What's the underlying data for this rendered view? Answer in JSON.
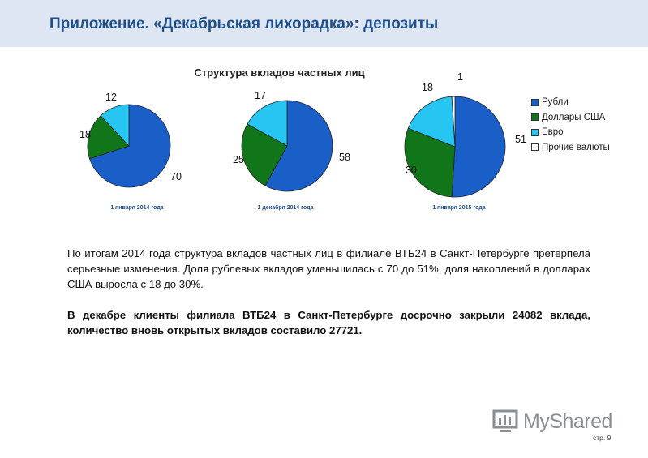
{
  "header": {
    "title": "Приложение. «Декабрьская лихорадка»: депозиты"
  },
  "chart_data": {
    "type": "pie",
    "title": "Структура вкладов частных лиц",
    "legend_position": "right",
    "categories": [
      "Рубли",
      "Доллары США",
      "Евро",
      "Прочие валюты"
    ],
    "colors": [
      "#1a5fc7",
      "#11761a",
      "#27c6f2",
      "#ffffff"
    ],
    "pies": [
      {
        "name": "1 января 2014 года",
        "values": [
          70,
          18,
          12,
          0
        ]
      },
      {
        "name": "1 декабря 2014 года",
        "values": [
          58,
          25,
          17,
          0
        ]
      },
      {
        "name": "1 января 2015 года",
        "values": [
          51,
          30,
          18,
          1
        ]
      }
    ]
  },
  "text": {
    "paragraph1": "По итогам 2014 года структура вкладов частных лиц в филиале ВТБ24 в Санкт-Петербурге претерпела серьезные изменения. Доля рублевых вкладов уменьшилась с 70 до 51%, доля накоплений в долларах США выросла с 18 до 30%.",
    "paragraph2": "В декабре клиенты филиала ВТБ24 в Санкт-Петербурге досрочно закрыли 24082 вклада, количество вновь открытых вкладов составило 27721."
  },
  "footer": {
    "logo": "MyShared",
    "page": "стр. 9"
  }
}
